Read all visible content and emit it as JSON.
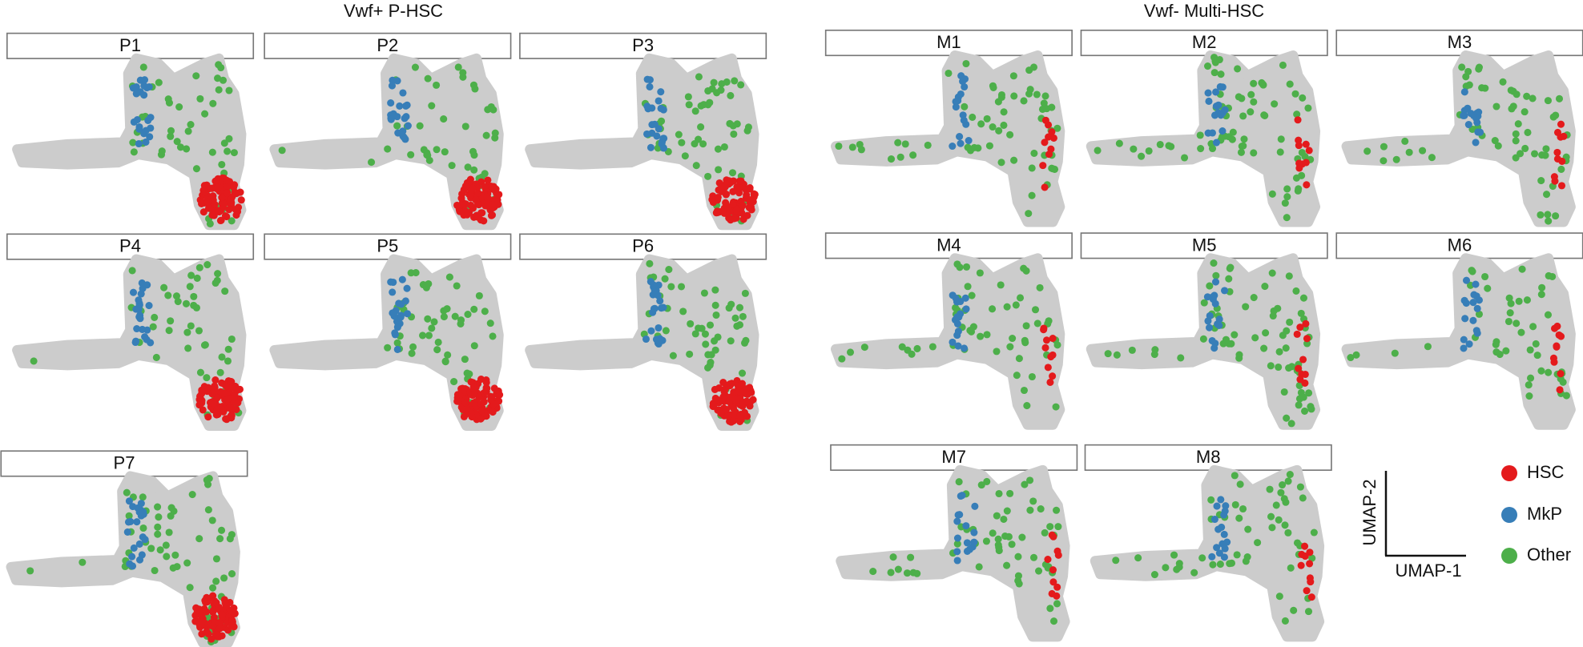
{
  "groups": [
    {
      "title": "Vwf+ P-HSC",
      "panels": [
        "P1",
        "P2",
        "P3",
        "P4",
        "P5",
        "P6",
        "P7"
      ]
    },
    {
      "title": "Vwf- Multi-HSC",
      "panels": [
        "M1",
        "M2",
        "M3",
        "M4",
        "M5",
        "M6",
        "M7",
        "M8"
      ]
    }
  ],
  "legend": {
    "items": [
      {
        "label": "HSC",
        "color": "#e41a1c"
      },
      {
        "label": "MkP",
        "color": "#377eb8"
      },
      {
        "label": "Other",
        "color": "#4daf4a"
      }
    ]
  },
  "axes": {
    "x_label": "UMAP-1",
    "y_label": "UMAP-2"
  }
}
